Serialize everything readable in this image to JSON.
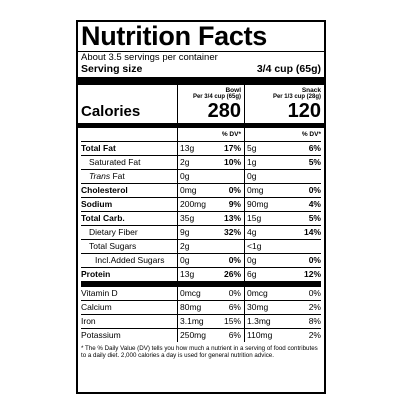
{
  "label": {
    "title": "Nutrition Facts",
    "servings_text": "About 3.5 servings per container",
    "serving_size_label": "Serving size",
    "serving_size_value": "3/4 cup (65g)",
    "columns": [
      {
        "name": "Bowl",
        "per": "Per 3/4 cup (65g)",
        "calories": "280"
      },
      {
        "name": "Snack",
        "per": "Per 1/3 cup (28g)",
        "calories": "120"
      }
    ],
    "calories_label": "Calories",
    "dv_header": "% DV*",
    "rows": [
      {
        "name": "Total Fat",
        "a1": "13g",
        "d1": "17%",
        "a2": "5g",
        "d2": "6%"
      },
      {
        "name": "Saturated Fat",
        "a1": "2g",
        "d1": "10%",
        "a2": "1g",
        "d2": "5%"
      },
      {
        "name_italic": "Trans",
        "name_rest": " Fat",
        "a1": "0g",
        "d1": "",
        "a2": "0g",
        "d2": ""
      },
      {
        "name": "Cholesterol",
        "a1": "0mg",
        "d1": "0%",
        "a2": "0mg",
        "d2": "0%"
      },
      {
        "name": "Sodium",
        "a1": "200mg",
        "d1": "9%",
        "a2": "90mg",
        "d2": "4%"
      },
      {
        "name": "Total Carb.",
        "a1": "35g",
        "d1": "13%",
        "a2": "15g",
        "d2": "5%"
      },
      {
        "name": "Dietary Fiber",
        "a1": "9g",
        "d1": "32%",
        "a2": "4g",
        "d2": "14%"
      },
      {
        "name": "Total Sugars",
        "a1": "2g",
        "d1": "",
        "a2": "<1g",
        "d2": ""
      },
      {
        "name": "Incl.Added Sugars",
        "a1": "0g",
        "d1": "0%",
        "a2": "0g",
        "d2": "0%"
      },
      {
        "name": "Protein",
        "a1": "13g",
        "d1": "26%",
        "a2": "6g",
        "d2": "12%"
      },
      {
        "name": "Vitamin D",
        "a1": "0mcg",
        "d1": "0%",
        "a2": "0mcg",
        "d2": "0%"
      },
      {
        "name": "Calcium",
        "a1": "80mg",
        "d1": "6%",
        "a2": "30mg",
        "d2": "2%"
      },
      {
        "name": "Iron",
        "a1": "3.1mg",
        "d1": "15%",
        "a2": "1.3mg",
        "d2": "8%"
      },
      {
        "name": "Potassium",
        "a1": "250mg",
        "d1": "6%",
        "a2": "110mg",
        "d2": "2%"
      }
    ],
    "footnote": "* The % Daily Value (DV) tells you how much a nutrient in a serving of food contributes to a daily diet. 2,000 calories a day is used for general nutrition advice."
  }
}
